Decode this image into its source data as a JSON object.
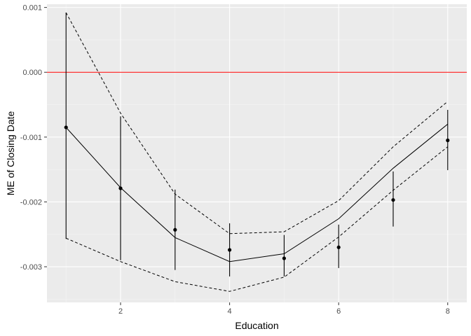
{
  "chart_data": {
    "type": "line",
    "xlabel": "Education",
    "ylabel": "ME of Closing Date",
    "xlim": [
      0.65,
      8.35
    ],
    "ylim": [
      -0.00355,
      0.00105
    ],
    "x_ticks": [
      2,
      4,
      6,
      8
    ],
    "x_tick_labels": [
      "2",
      "4",
      "6",
      "8"
    ],
    "y_ticks": [
      0.001,
      0.0,
      -0.001,
      -0.002,
      -0.003
    ],
    "y_tick_labels": [
      "0.001",
      "0.000",
      "-0.001",
      "-0.002",
      "-0.003"
    ],
    "grid": true,
    "reference_line": {
      "y": 0.0,
      "color": "#ff0000"
    },
    "series": [
      {
        "style": "solid",
        "x": [
          1,
          2,
          3,
          4,
          5,
          6,
          7,
          8
        ],
        "y": [
          -0.00085,
          -0.00178,
          -0.00255,
          -0.00292,
          -0.0028,
          -0.00226,
          -0.00148,
          -0.0008
        ]
      },
      {
        "style": "dashed",
        "x": [
          1,
          2,
          3,
          4,
          5,
          6,
          7,
          8
        ],
        "y": [
          0.00092,
          -0.00063,
          -0.00188,
          -0.00249,
          -0.00246,
          -0.00198,
          -0.00115,
          -0.00045
        ]
      },
      {
        "style": "dashed",
        "x": [
          1,
          2,
          3,
          4,
          5,
          6,
          7,
          8
        ],
        "y": [
          -0.00256,
          -0.00292,
          -0.00323,
          -0.00338,
          -0.00316,
          -0.00254,
          -0.00182,
          -0.00115
        ]
      },
      {
        "style": "points-with-error-bars",
        "x": [
          1,
          2,
          3,
          4,
          5,
          6,
          7,
          8
        ],
        "y": [
          -0.00085,
          -0.00179,
          -0.00243,
          -0.00274,
          -0.00287,
          -0.0027,
          -0.00197,
          -0.00105
        ],
        "lower": [
          -0.00257,
          -0.0029,
          -0.00305,
          -0.00315,
          -0.00315,
          -0.00302,
          -0.00238,
          -0.00151
        ],
        "upper": [
          0.00092,
          -0.00068,
          -0.00181,
          -0.00233,
          -0.00251,
          -0.00235,
          -0.00153,
          -0.00058
        ]
      }
    ]
  }
}
